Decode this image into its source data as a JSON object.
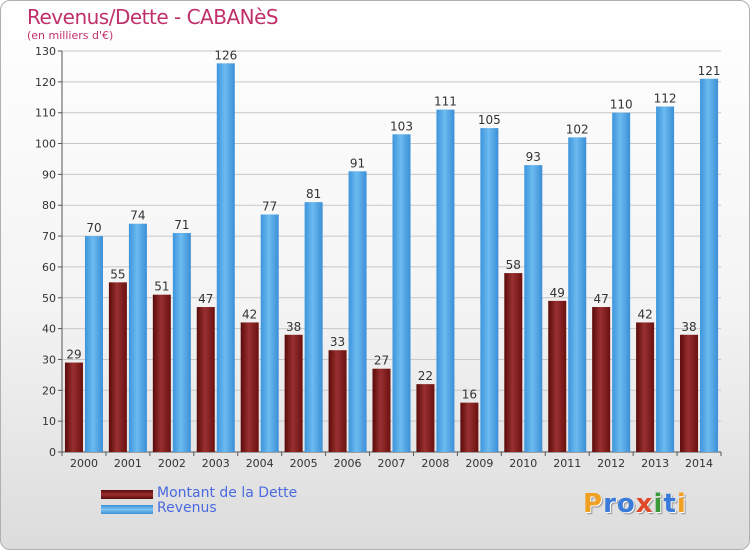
{
  "chart_data": {
    "type": "bar",
    "title": "Revenus/Dette - CABANèS",
    "subtitle": "(en milliers d'€)",
    "categories": [
      "2000",
      "2001",
      "2002",
      "2003",
      "2004",
      "2005",
      "2006",
      "2007",
      "2008",
      "2009",
      "2010",
      "2011",
      "2012",
      "2013",
      "2014"
    ],
    "series": [
      {
        "name": "Montant de la Dette",
        "color": "#7a1a1a",
        "values": [
          29,
          55,
          51,
          47,
          42,
          38,
          33,
          27,
          22,
          16,
          58,
          49,
          47,
          42,
          38
        ]
      },
      {
        "name": "Revenus",
        "color": "#4aa3e6",
        "values": [
          70,
          74,
          71,
          126,
          77,
          81,
          91,
          103,
          111,
          105,
          93,
          102,
          110,
          112,
          121
        ]
      }
    ],
    "ylim": [
      0,
      130
    ],
    "yticks": [
      0,
      10,
      20,
      30,
      40,
      50,
      60,
      70,
      80,
      90,
      100,
      110,
      120,
      130
    ],
    "grid": true,
    "legend_position": "bottom-left"
  },
  "logo": {
    "text": "Proxiti",
    "letters": [
      {
        "ch": "P",
        "color": "#f0a020"
      },
      {
        "ch": "r",
        "color": "#3a7ad8"
      },
      {
        "ch": "o",
        "color": "#3a7ad8"
      },
      {
        "ch": "x",
        "color": "#e04a2a"
      },
      {
        "ch": "i",
        "color": "#3a9a3a"
      },
      {
        "ch": "t",
        "color": "#3a7ad8"
      },
      {
        "ch": "i",
        "color": "#f0a020"
      }
    ]
  }
}
